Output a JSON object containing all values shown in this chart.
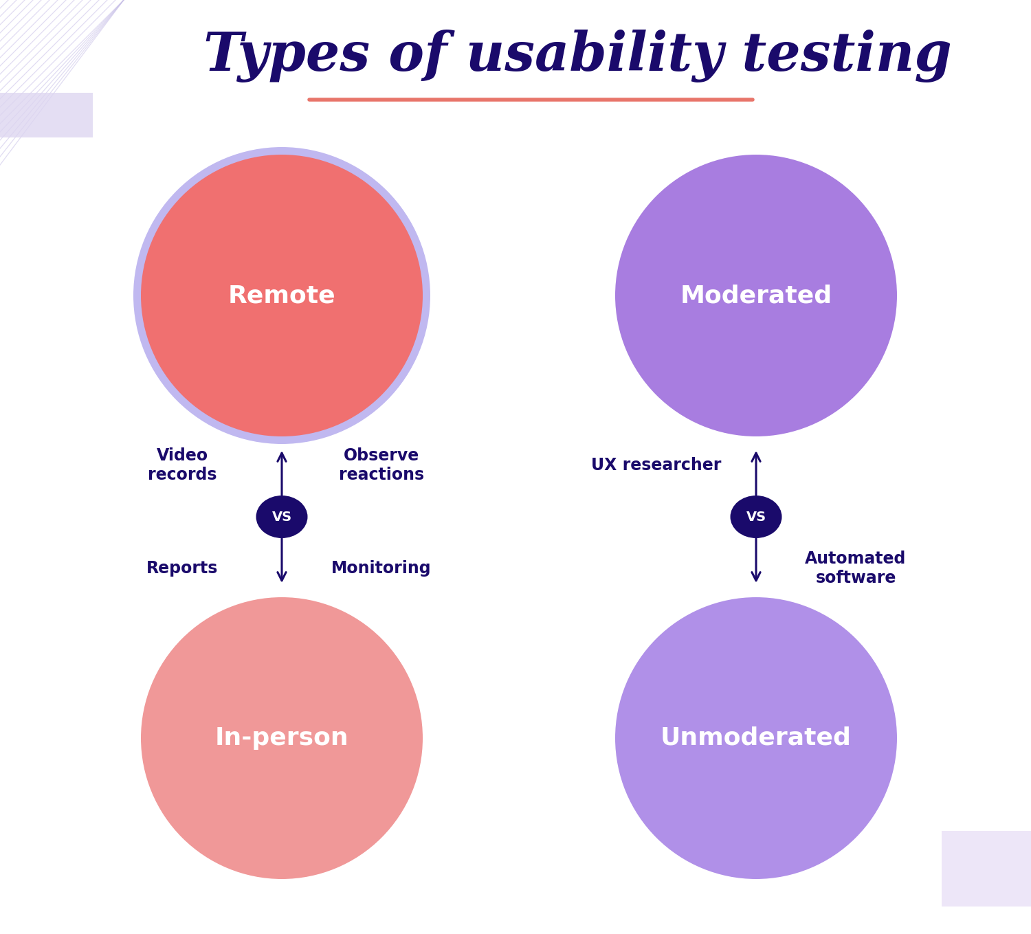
{
  "title": "Types of usability testing",
  "title_color": "#1a0a6b",
  "title_fontsize": 56,
  "underline_color": "#e8756a",
  "bg_color": "#ffffff",
  "left_circle1_label": "Remote",
  "left_circle1_color": "#f07070",
  "left_circle1_border": "#c0b8f0",
  "left_circle2_label": "In-person",
  "left_circle2_color": "#f09898",
  "right_circle1_label": "Moderated",
  "right_circle1_color": "#a87de0",
  "right_circle2_label": "Unmoderated",
  "right_circle2_color": "#b090e8",
  "vs_bg_color": "#1a0a6b",
  "vs_text_color": "#ffffff",
  "arrow_color": "#1a0a6b",
  "label_color": "#1a0a6b",
  "left_labels_top_left": "Video\nrecords",
  "left_labels_top_right": "Observe\nreactions",
  "left_labels_bottom_left": "Reports",
  "left_labels_bottom_right": "Monitoring",
  "right_labels_top_left": "UX researcher",
  "right_labels_bottom_right": "Automated\nsoftware",
  "label_fontsize": 17,
  "circle_label_fontsize": 26,
  "fig_width": 15.0,
  "fig_height": 13.59
}
